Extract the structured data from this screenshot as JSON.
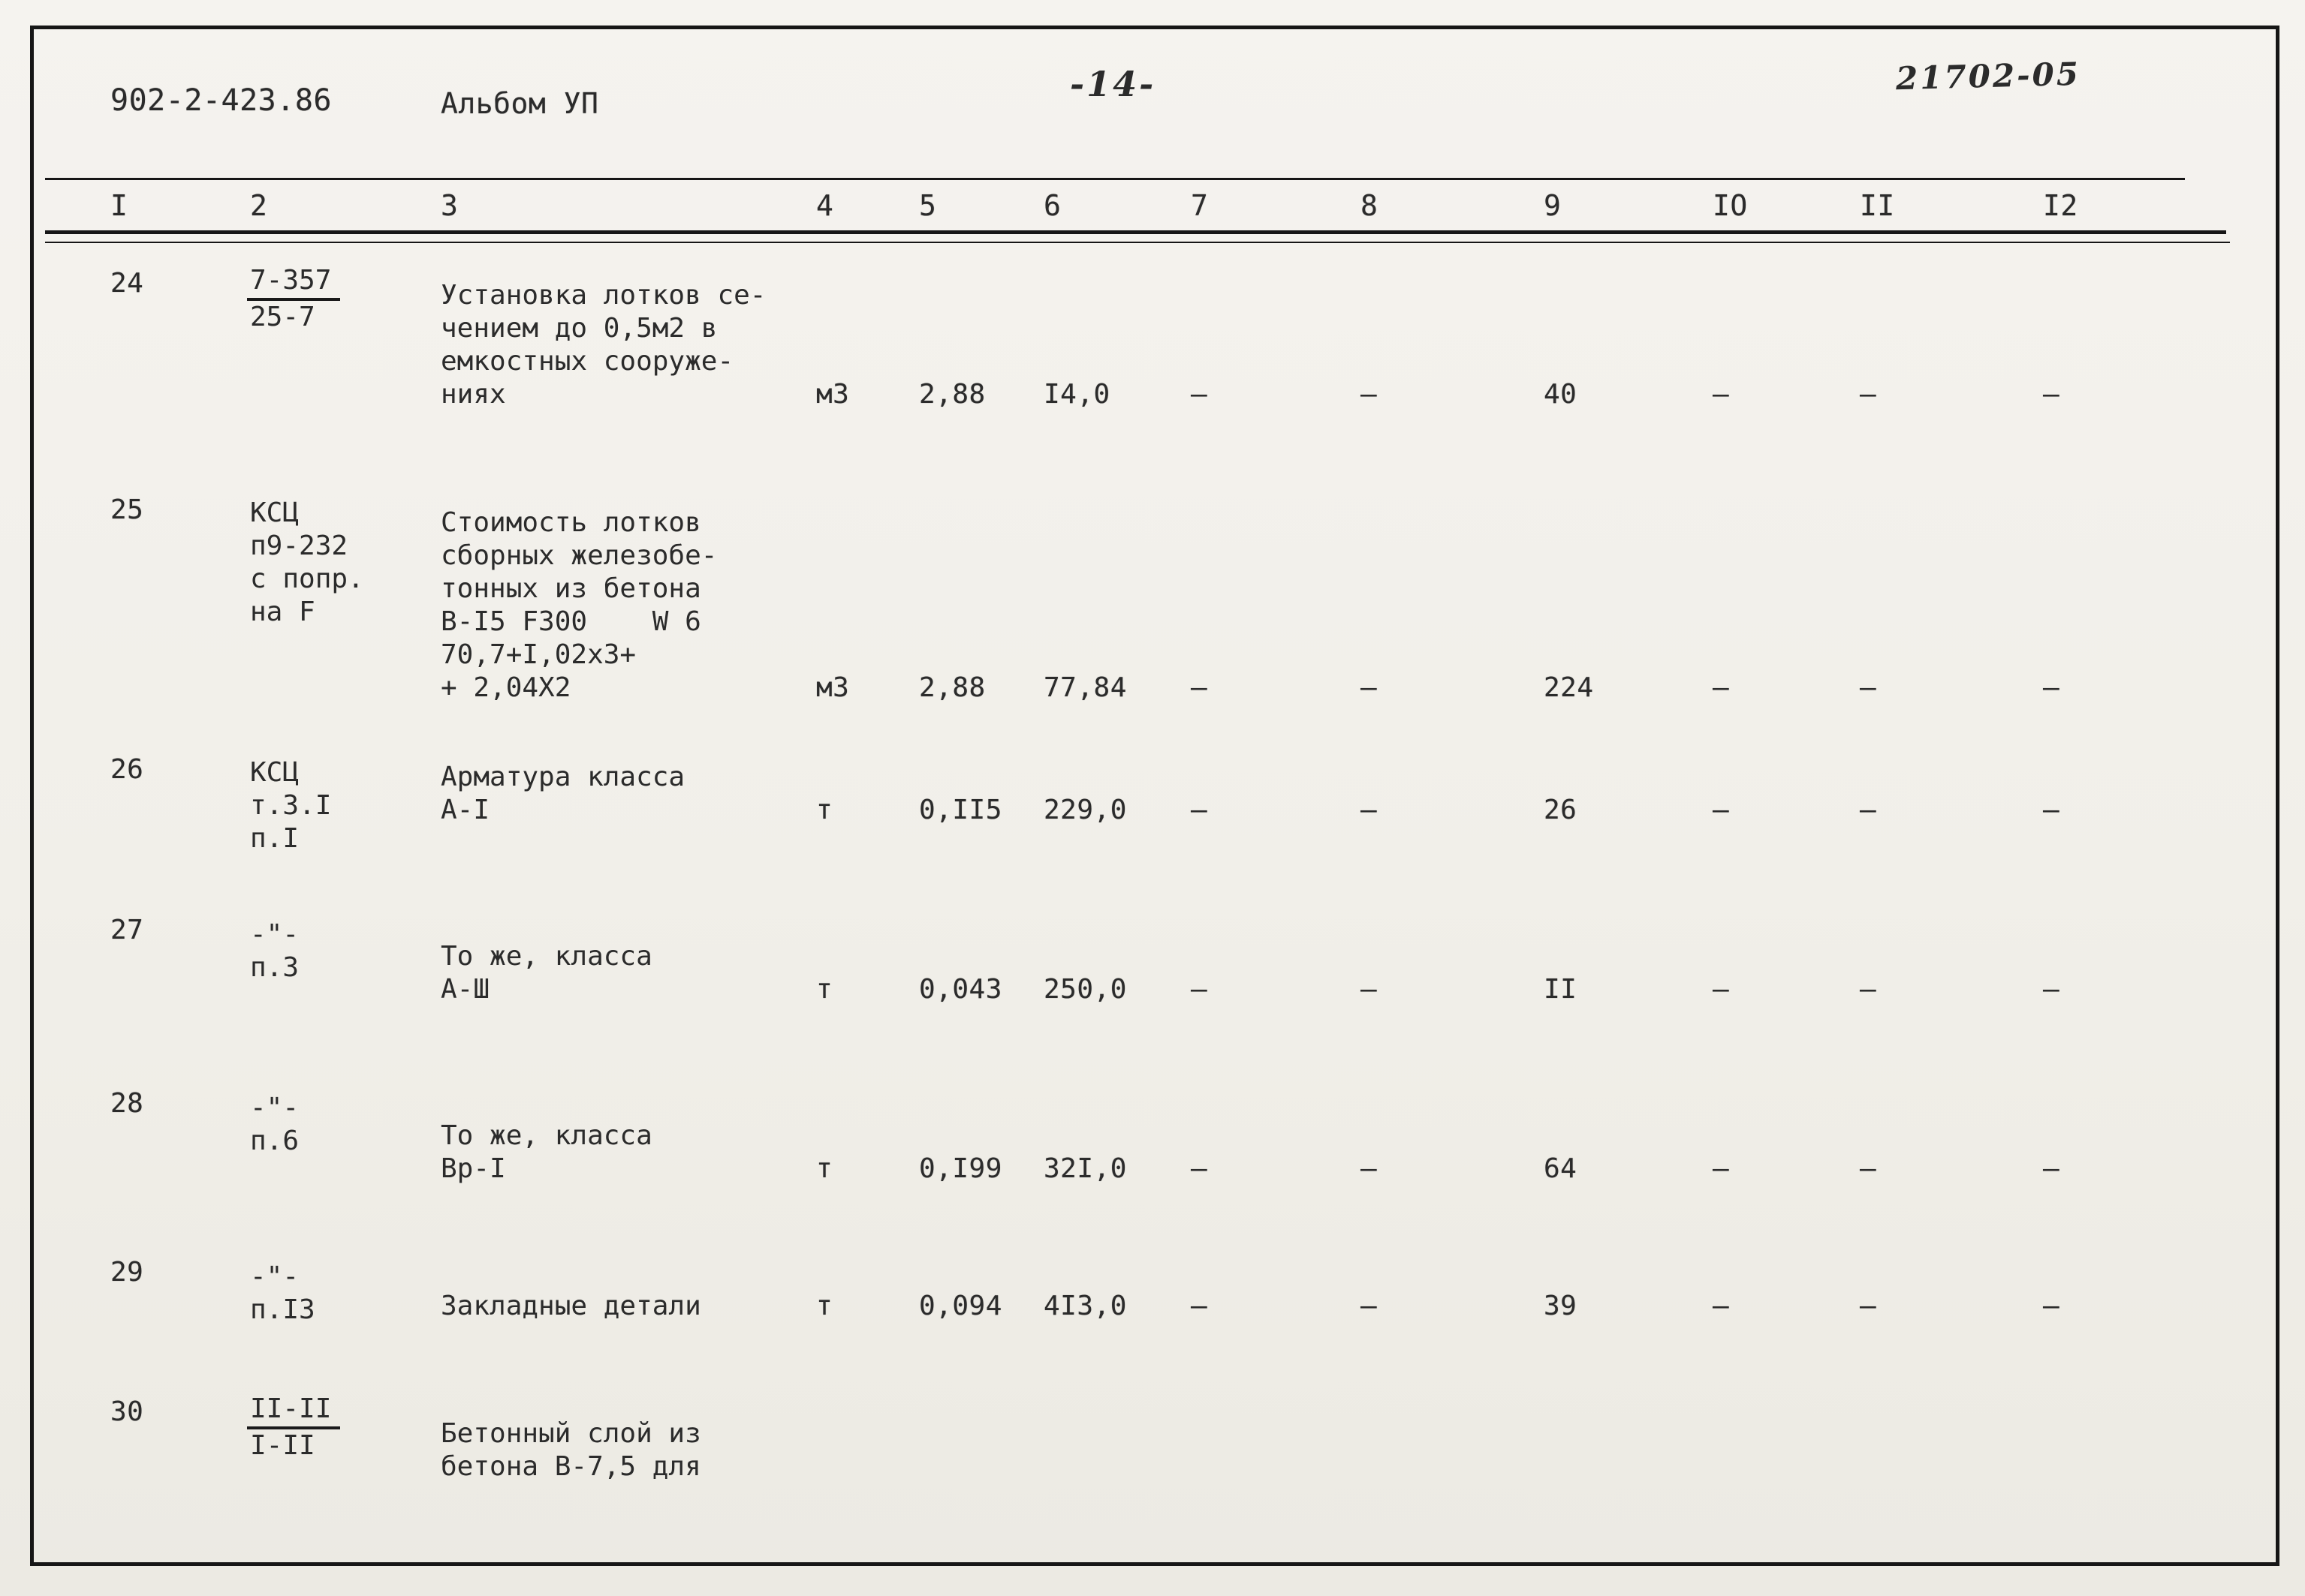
{
  "header": {
    "doc_number": "902-2-423.86",
    "album": "Альбом УП",
    "page": "-14-",
    "stamp": "21702-05"
  },
  "table": {
    "columns": [
      "I",
      "2",
      "3",
      "4",
      "5",
      "6",
      "7",
      "8",
      "9",
      "IO",
      "II",
      "I2"
    ],
    "rows": [
      {
        "num": "24",
        "ref": [
          {
            "text": "7-357",
            "underline": true
          },
          {
            "text": "25-7"
          }
        ],
        "desc": [
          "Установка лотков се-",
          "чением до 0,5м2 в",
          "емкостных сооруже-",
          "ниях"
        ],
        "unit": "м3",
        "values": {
          "c5": "2,88",
          "c6": "I4,0",
          "c7": "–",
          "c8": "–",
          "c9": "40",
          "c10": "–",
          "c11": "–",
          "c12": "–"
        }
      },
      {
        "num": "25",
        "ref": [
          {
            "text": "КСЦ"
          },
          {
            "text": "п9-232"
          },
          {
            "text": "с попр."
          },
          {
            "text": "на F"
          }
        ],
        "desc": [
          "Стоимость лотков",
          "сборных железобе-",
          "тонных из бетона",
          "В-I5 F300    W 6",
          "70,7+I,02х3+",
          "+ 2,04Х2"
        ],
        "unit": "м3",
        "values": {
          "c5": "2,88",
          "c6": "77,84",
          "c7": "–",
          "c8": "–",
          "c9": "224",
          "c10": "–",
          "c11": "–",
          "c12": "–"
        }
      },
      {
        "num": "26",
        "ref": [
          {
            "text": "КСЦ"
          },
          {
            "text": "т.3.I"
          },
          {
            "text": "п.I"
          }
        ],
        "desc": [
          "Арматура класса",
          "А-I"
        ],
        "unit": "т",
        "values": {
          "c5": "0,II5",
          "c6": "229,0",
          "c7": "–",
          "c8": "–",
          "c9": "26",
          "c10": "–",
          "c11": "–",
          "c12": "–"
        }
      },
      {
        "num": "27",
        "ref": [
          {
            "text": "-\"-"
          },
          {
            "text": "п.3"
          }
        ],
        "desc": [
          "То же, класса",
          "А-Ш"
        ],
        "unit": "т",
        "values": {
          "c5": "0,043",
          "c6": "250,0",
          "c7": "–",
          "c8": "–",
          "c9": "II",
          "c10": "–",
          "c11": "–",
          "c12": "–"
        }
      },
      {
        "num": "28",
        "ref": [
          {
            "text": "-\"-"
          },
          {
            "text": "п.6"
          }
        ],
        "desc": [
          "То же, класса",
          "Вр-I"
        ],
        "unit": "т",
        "values": {
          "c5": "0,I99",
          "c6": "32I,0",
          "c7": "–",
          "c8": "–",
          "c9": "64",
          "c10": "–",
          "c11": "–",
          "c12": "–"
        }
      },
      {
        "num": "29",
        "ref": [
          {
            "text": "-\"-"
          },
          {
            "text": "п.I3"
          }
        ],
        "desc": [
          "Закладные детали"
        ],
        "unit": "т",
        "values": {
          "c5": "0,094",
          "c6": "4I3,0",
          "c7": "–",
          "c8": "–",
          "c9": "39",
          "c10": "–",
          "c11": "–",
          "c12": "–"
        }
      },
      {
        "num": "30",
        "ref": [
          {
            "text": "II-II",
            "underline": true
          },
          {
            "text": "I-II"
          }
        ],
        "desc": [
          "Бетонный слой из",
          "бетона В-7,5 для"
        ],
        "unit": "",
        "values": {}
      }
    ]
  }
}
